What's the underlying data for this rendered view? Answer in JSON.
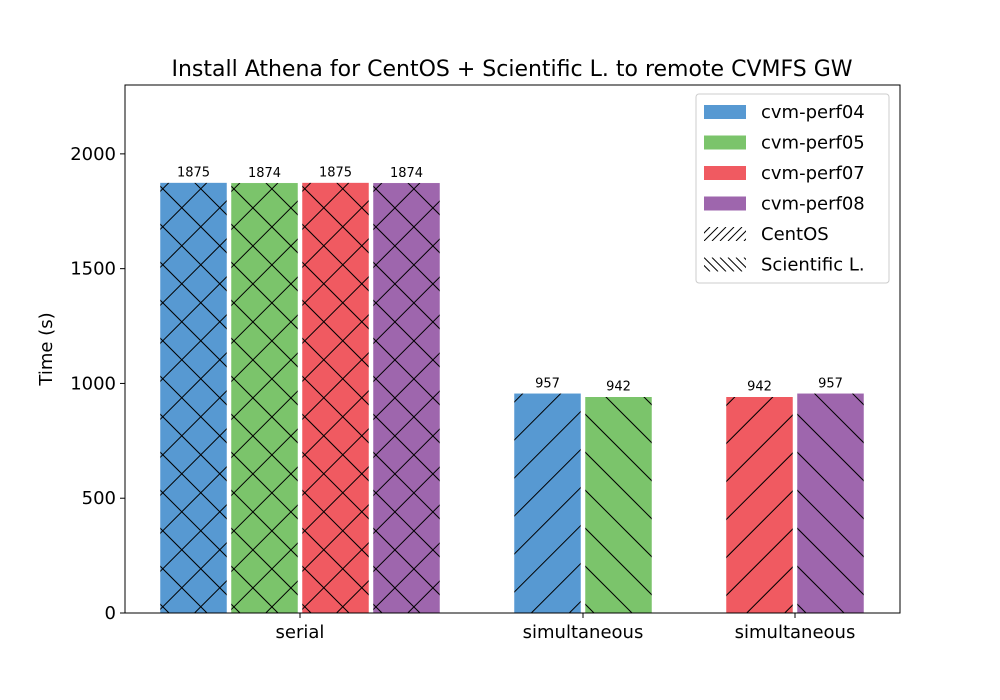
{
  "chart_data": {
    "type": "bar",
    "title": "Install Athena for CentOS + Scientific L. to remote CVMFS GW",
    "xlabel": "",
    "ylabel": "Time (s)",
    "ylim": [
      0,
      2300
    ],
    "yticks": [
      0,
      500,
      1000,
      1500,
      2000
    ],
    "grid": false,
    "legend_position": "top-right",
    "groups": [
      {
        "label": "serial",
        "bars": [
          {
            "series": "cvm-perf04",
            "value": 1875,
            "label": "1875",
            "hatch": [
              "CentOS",
              "Scientific L."
            ]
          },
          {
            "series": "cvm-perf05",
            "value": 1874,
            "label": "1874",
            "hatch": [
              "CentOS",
              "Scientific L."
            ]
          },
          {
            "series": "cvm-perf07",
            "value": 1875,
            "label": "1875",
            "hatch": [
              "CentOS",
              "Scientific L."
            ]
          },
          {
            "series": "cvm-perf08",
            "value": 1874,
            "label": "1874",
            "hatch": [
              "CentOS",
              "Scientific L."
            ]
          }
        ]
      },
      {
        "label": "simultaneous",
        "bars": [
          {
            "series": "cvm-perf04",
            "value": 957,
            "label": "957",
            "hatch": [
              "CentOS"
            ]
          },
          {
            "series": "cvm-perf05",
            "value": 942,
            "label": "942",
            "hatch": [
              "Scientific L."
            ]
          }
        ]
      },
      {
        "label": "simultaneous",
        "bars": [
          {
            "series": "cvm-perf07",
            "value": 942,
            "label": "942",
            "hatch": [
              "CentOS"
            ]
          },
          {
            "series": "cvm-perf08",
            "value": 957,
            "label": "957",
            "hatch": [
              "Scientific L."
            ]
          }
        ]
      }
    ],
    "series": [
      {
        "name": "cvm-perf04",
        "color": "#5799d2"
      },
      {
        "name": "cvm-perf05",
        "color": "#7bc46b"
      },
      {
        "name": "cvm-perf07",
        "color": "#f05a61"
      },
      {
        "name": "cvm-perf08",
        "color": "#9e66ad"
      }
    ],
    "hatch_legend": [
      {
        "name": "CentOS",
        "pattern": "forward-diagonal"
      },
      {
        "name": "Scientific L.",
        "pattern": "back-diagonal"
      }
    ]
  }
}
